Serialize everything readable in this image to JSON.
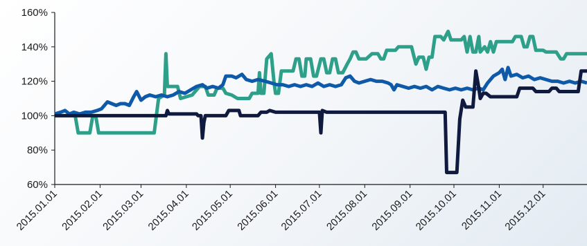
{
  "chart_data": {
    "type": "line",
    "title": "",
    "xlabel": "",
    "ylabel": "",
    "grid": false,
    "legend": "none",
    "x_range": [
      "2015.01.01",
      "2015.12.31"
    ],
    "ylim": [
      60,
      160
    ],
    "y_ticks": [
      60,
      80,
      100,
      120,
      140,
      160
    ],
    "y_tick_labels": [
      "60%",
      "80%",
      "100%",
      "120%",
      "140%",
      "160%"
    ],
    "x_ticks": [
      "2015.01.01",
      "2015.02.01",
      "2015.03.01",
      "2015.04.01",
      "2015.05.01",
      "2015.06.01",
      "2015.07.01",
      "2015.08.01",
      "2015.09.01",
      "2015.10.01",
      "2015.11.01",
      "2015.12.01"
    ],
    "x_tick_labels": [
      "2015.01.01",
      "2015.02.01",
      "2015.03.01",
      "2015.04.01",
      "2015.05.01",
      "2015.06.01",
      "2015.07.01",
      "2015.08.01",
      "2015.09.01",
      "2015.10.01",
      "2015.11.01",
      "2015.12.01"
    ],
    "series": [
      {
        "color": "#2ea08a",
        "points": [
          [
            "2015.01.01",
            100
          ],
          [
            "2015.01.15",
            100
          ],
          [
            "2015.01.17",
            90
          ],
          [
            "2015.01.25",
            90
          ],
          [
            "2015.01.27",
            100
          ],
          [
            "2015.01.29",
            100
          ],
          [
            "2015.01.31",
            90
          ],
          [
            "2015.02.25",
            90
          ],
          [
            "2015.03.10",
            90
          ],
          [
            "2015.03.13",
            110
          ],
          [
            "2015.03.17",
            112
          ],
          [
            "2015.03.18",
            136
          ],
          [
            "2015.03.19",
            117
          ],
          [
            "2015.03.26",
            117
          ],
          [
            "2015.03.28",
            110
          ],
          [
            "2015.04.05",
            112
          ],
          [
            "2015.04.10",
            117
          ],
          [
            "2015.04.14",
            117
          ],
          [
            "2015.04.16",
            112
          ],
          [
            "2015.04.20",
            112
          ],
          [
            "2015.04.22",
            116
          ],
          [
            "2015.04.26",
            116
          ],
          [
            "2015.04.28",
            113
          ],
          [
            "2015.05.02",
            112
          ],
          [
            "2015.05.06",
            110
          ],
          [
            "2015.05.14",
            110
          ],
          [
            "2015.05.16",
            113
          ],
          [
            "2015.05.20",
            113
          ],
          [
            "2015.05.21",
            125
          ],
          [
            "2015.05.22",
            113
          ],
          [
            "2015.05.24",
            113
          ],
          [
            "2015.05.26",
            133
          ],
          [
            "2015.05.29",
            136
          ],
          [
            "2015.05.31",
            119
          ],
          [
            "2015.06.01",
            113
          ],
          [
            "2015.06.03",
            113
          ],
          [
            "2015.06.05",
            126
          ],
          [
            "2015.06.13",
            126
          ],
          [
            "2015.06.15",
            133
          ],
          [
            "2015.06.17",
            133
          ],
          [
            "2015.06.19",
            123
          ],
          [
            "2015.06.21",
            123
          ],
          [
            "2015.06.22",
            133
          ],
          [
            "2015.06.25",
            133
          ],
          [
            "2015.06.27",
            123
          ],
          [
            "2015.06.29",
            123
          ],
          [
            "2015.07.02",
            133
          ],
          [
            "2015.07.04",
            133
          ],
          [
            "2015.07.06",
            125
          ],
          [
            "2015.07.08",
            125
          ],
          [
            "2015.07.10",
            133
          ],
          [
            "2015.07.12",
            133
          ],
          [
            "2015.07.14",
            125
          ],
          [
            "2015.07.17",
            125
          ],
          [
            "2015.07.20",
            130
          ],
          [
            "2015.07.22",
            133
          ],
          [
            "2015.07.24",
            137
          ],
          [
            "2015.07.26",
            137
          ],
          [
            "2015.07.28",
            133
          ],
          [
            "2015.08.02",
            133
          ],
          [
            "2015.08.06",
            136
          ],
          [
            "2015.08.10",
            136
          ],
          [
            "2015.08.12",
            133
          ],
          [
            "2015.08.14",
            133
          ],
          [
            "2015.08.16",
            138
          ],
          [
            "2015.08.22",
            138
          ],
          [
            "2015.08.24",
            140
          ],
          [
            "2015.09.02",
            140
          ],
          [
            "2015.09.05",
            130
          ],
          [
            "2015.09.07",
            134
          ],
          [
            "2015.09.10",
            134
          ],
          [
            "2015.09.12",
            127
          ],
          [
            "2015.09.14",
            134
          ],
          [
            "2015.09.16",
            134
          ],
          [
            "2015.09.18",
            146
          ],
          [
            "2015.09.22",
            146
          ],
          [
            "2015.09.24",
            144
          ],
          [
            "2015.09.27",
            149
          ],
          [
            "2015.09.29",
            144
          ],
          [
            "2015.10.06",
            144
          ],
          [
            "2015.10.08",
            146
          ],
          [
            "2015.10.10",
            137
          ],
          [
            "2015.10.12",
            146
          ],
          [
            "2015.10.14",
            137
          ],
          [
            "2015.10.16",
            137
          ],
          [
            "2015.10.18",
            146
          ],
          [
            "2015.10.19",
            137
          ],
          [
            "2015.10.22",
            140
          ],
          [
            "2015.10.24",
            137
          ],
          [
            "2015.10.26",
            143
          ],
          [
            "2015.10.28",
            137
          ],
          [
            "2015.10.30",
            143
          ],
          [
            "2015.11.10",
            143
          ],
          [
            "2015.11.12",
            146
          ],
          [
            "2015.11.16",
            146
          ],
          [
            "2015.11.18",
            140
          ],
          [
            "2015.11.20",
            140
          ],
          [
            "2015.11.22",
            146
          ],
          [
            "2015.11.24",
            146
          ],
          [
            "2015.11.26",
            138
          ],
          [
            "2015.11.28",
            138
          ],
          [
            "2015.12.01",
            138
          ],
          [
            "2015.12.03",
            137
          ],
          [
            "2015.12.10",
            137
          ],
          [
            "2015.12.13",
            133
          ],
          [
            "2015.12.15",
            133
          ],
          [
            "2015.12.17",
            136
          ],
          [
            "2015.12.31",
            136
          ]
        ]
      },
      {
        "color": "#0e5aa8",
        "points": [
          [
            "2015.01.01",
            101
          ],
          [
            "2015.01.05",
            102
          ],
          [
            "2015.01.08",
            103
          ],
          [
            "2015.01.11",
            101
          ],
          [
            "2015.01.14",
            102
          ],
          [
            "2015.01.18",
            101
          ],
          [
            "2015.01.22",
            102
          ],
          [
            "2015.01.26",
            102
          ],
          [
            "2015.01.30",
            103
          ],
          [
            "2015.02.02",
            104
          ],
          [
            "2015.02.04",
            106
          ],
          [
            "2015.02.06",
            108
          ],
          [
            "2015.02.09",
            107
          ],
          [
            "2015.02.12",
            106
          ],
          [
            "2015.02.15",
            107
          ],
          [
            "2015.02.18",
            107
          ],
          [
            "2015.02.21",
            106
          ],
          [
            "2015.02.24",
            111
          ],
          [
            "2015.02.26",
            114
          ],
          [
            "2015.03.01",
            109
          ],
          [
            "2015.03.04",
            111
          ],
          [
            "2015.03.07",
            112
          ],
          [
            "2015.03.11",
            111
          ],
          [
            "2015.03.15",
            112
          ],
          [
            "2015.03.19",
            111
          ],
          [
            "2015.03.23",
            112
          ],
          [
            "2015.03.27",
            114
          ],
          [
            "2015.03.31",
            113
          ],
          [
            "2015.04.04",
            115
          ],
          [
            "2015.04.08",
            117
          ],
          [
            "2015.04.12",
            118
          ],
          [
            "2015.04.15",
            116
          ],
          [
            "2015.04.19",
            117
          ],
          [
            "2015.04.23",
            116
          ],
          [
            "2015.04.26",
            118
          ],
          [
            "2015.04.28",
            123
          ],
          [
            "2015.05.02",
            123
          ],
          [
            "2015.05.05",
            122
          ],
          [
            "2015.05.09",
            124
          ],
          [
            "2015.05.12",
            121
          ],
          [
            "2015.05.16",
            120
          ],
          [
            "2015.05.20",
            121
          ],
          [
            "2015.05.25",
            120
          ],
          [
            "2015.05.29",
            119
          ],
          [
            "2015.06.02",
            118
          ],
          [
            "2015.06.06",
            118
          ],
          [
            "2015.06.10",
            117
          ],
          [
            "2015.06.14",
            118
          ],
          [
            "2015.06.18",
            117
          ],
          [
            "2015.06.22",
            118
          ],
          [
            "2015.06.26",
            117
          ],
          [
            "2015.06.30",
            119
          ],
          [
            "2015.07.04",
            117
          ],
          [
            "2015.07.08",
            118
          ],
          [
            "2015.07.12",
            117
          ],
          [
            "2015.07.16",
            118
          ],
          [
            "2015.07.19",
            122
          ],
          [
            "2015.07.22",
            123
          ],
          [
            "2015.07.25",
            120
          ],
          [
            "2015.07.28",
            119
          ],
          [
            "2015.08.01",
            120
          ],
          [
            "2015.08.05",
            121
          ],
          [
            "2015.08.09",
            120
          ],
          [
            "2015.08.13",
            120
          ],
          [
            "2015.08.17",
            119
          ],
          [
            "2015.08.19",
            118
          ],
          [
            "2015.08.21",
            115
          ],
          [
            "2015.08.23",
            118
          ],
          [
            "2015.08.27",
            117
          ],
          [
            "2015.08.31",
            116
          ],
          [
            "2015.09.04",
            117
          ],
          [
            "2015.09.08",
            116
          ],
          [
            "2015.09.12",
            117
          ],
          [
            "2015.09.16",
            115
          ],
          [
            "2015.09.20",
            117
          ],
          [
            "2015.09.24",
            116
          ],
          [
            "2015.09.28",
            115
          ],
          [
            "2015.10.02",
            116
          ],
          [
            "2015.10.06",
            115
          ],
          [
            "2015.10.10",
            116
          ],
          [
            "2015.10.14",
            115
          ],
          [
            "2015.10.18",
            116
          ],
          [
            "2015.10.21",
            115
          ],
          [
            "2015.10.24",
            119
          ],
          [
            "2015.10.28",
            123
          ],
          [
            "2015.11.01",
            125
          ],
          [
            "2015.11.03",
            127
          ],
          [
            "2015.11.05",
            121
          ],
          [
            "2015.11.07",
            128
          ],
          [
            "2015.11.09",
            123
          ],
          [
            "2015.11.13",
            124
          ],
          [
            "2015.11.17",
            122
          ],
          [
            "2015.11.21",
            123
          ],
          [
            "2015.11.25",
            121
          ],
          [
            "2015.11.29",
            122
          ],
          [
            "2015.12.03",
            121
          ],
          [
            "2015.12.07",
            120
          ],
          [
            "2015.12.11",
            120
          ],
          [
            "2015.12.15",
            119
          ],
          [
            "2015.12.19",
            120
          ],
          [
            "2015.12.23",
            119
          ],
          [
            "2015.12.27",
            120
          ],
          [
            "2015.12.31",
            119
          ]
        ]
      },
      {
        "color": "#0f1a3e",
        "points": [
          [
            "2015.01.01",
            100
          ],
          [
            "2015.03.18",
            100
          ],
          [
            "2015.03.19",
            103
          ],
          [
            "2015.03.20",
            101
          ],
          [
            "2015.04.08",
            101
          ],
          [
            "2015.04.09",
            100
          ],
          [
            "2015.04.11",
            100
          ],
          [
            "2015.04.12",
            87
          ],
          [
            "2015.04.13",
            96
          ],
          [
            "2015.04.14",
            100
          ],
          [
            "2015.04.28",
            100
          ],
          [
            "2015.04.30",
            103
          ],
          [
            "2015.05.07",
            103
          ],
          [
            "2015.05.08",
            100
          ],
          [
            "2015.05.20",
            100
          ],
          [
            "2015.05.22",
            102
          ],
          [
            "2015.05.26",
            102
          ],
          [
            "2015.05.28",
            103
          ],
          [
            "2015.06.01",
            102
          ],
          [
            "2015.07.01",
            102
          ],
          [
            "2015.07.02",
            90
          ],
          [
            "2015.07.03",
            103
          ],
          [
            "2015.07.06",
            102
          ],
          [
            "2015.09.25",
            102
          ],
          [
            "2015.09.26",
            67
          ],
          [
            "2015.10.03",
            67
          ],
          [
            "2015.10.05",
            98
          ],
          [
            "2015.10.07",
            109
          ],
          [
            "2015.10.09",
            105
          ],
          [
            "2015.10.14",
            105
          ],
          [
            "2015.10.16",
            126
          ],
          [
            "2015.10.18",
            116
          ],
          [
            "2015.10.19",
            110
          ],
          [
            "2015.10.21",
            113
          ],
          [
            "2015.10.23",
            113
          ],
          [
            "2015.10.26",
            111
          ],
          [
            "2015.11.13",
            111
          ],
          [
            "2015.11.15",
            116
          ],
          [
            "2015.11.24",
            116
          ],
          [
            "2015.11.26",
            114
          ],
          [
            "2015.12.05",
            114
          ],
          [
            "2015.12.07",
            116
          ],
          [
            "2015.12.10",
            116
          ],
          [
            "2015.12.12",
            114
          ],
          [
            "2015.12.25",
            114
          ],
          [
            "2015.12.27",
            126
          ],
          [
            "2015.12.31",
            126
          ]
        ]
      }
    ]
  }
}
